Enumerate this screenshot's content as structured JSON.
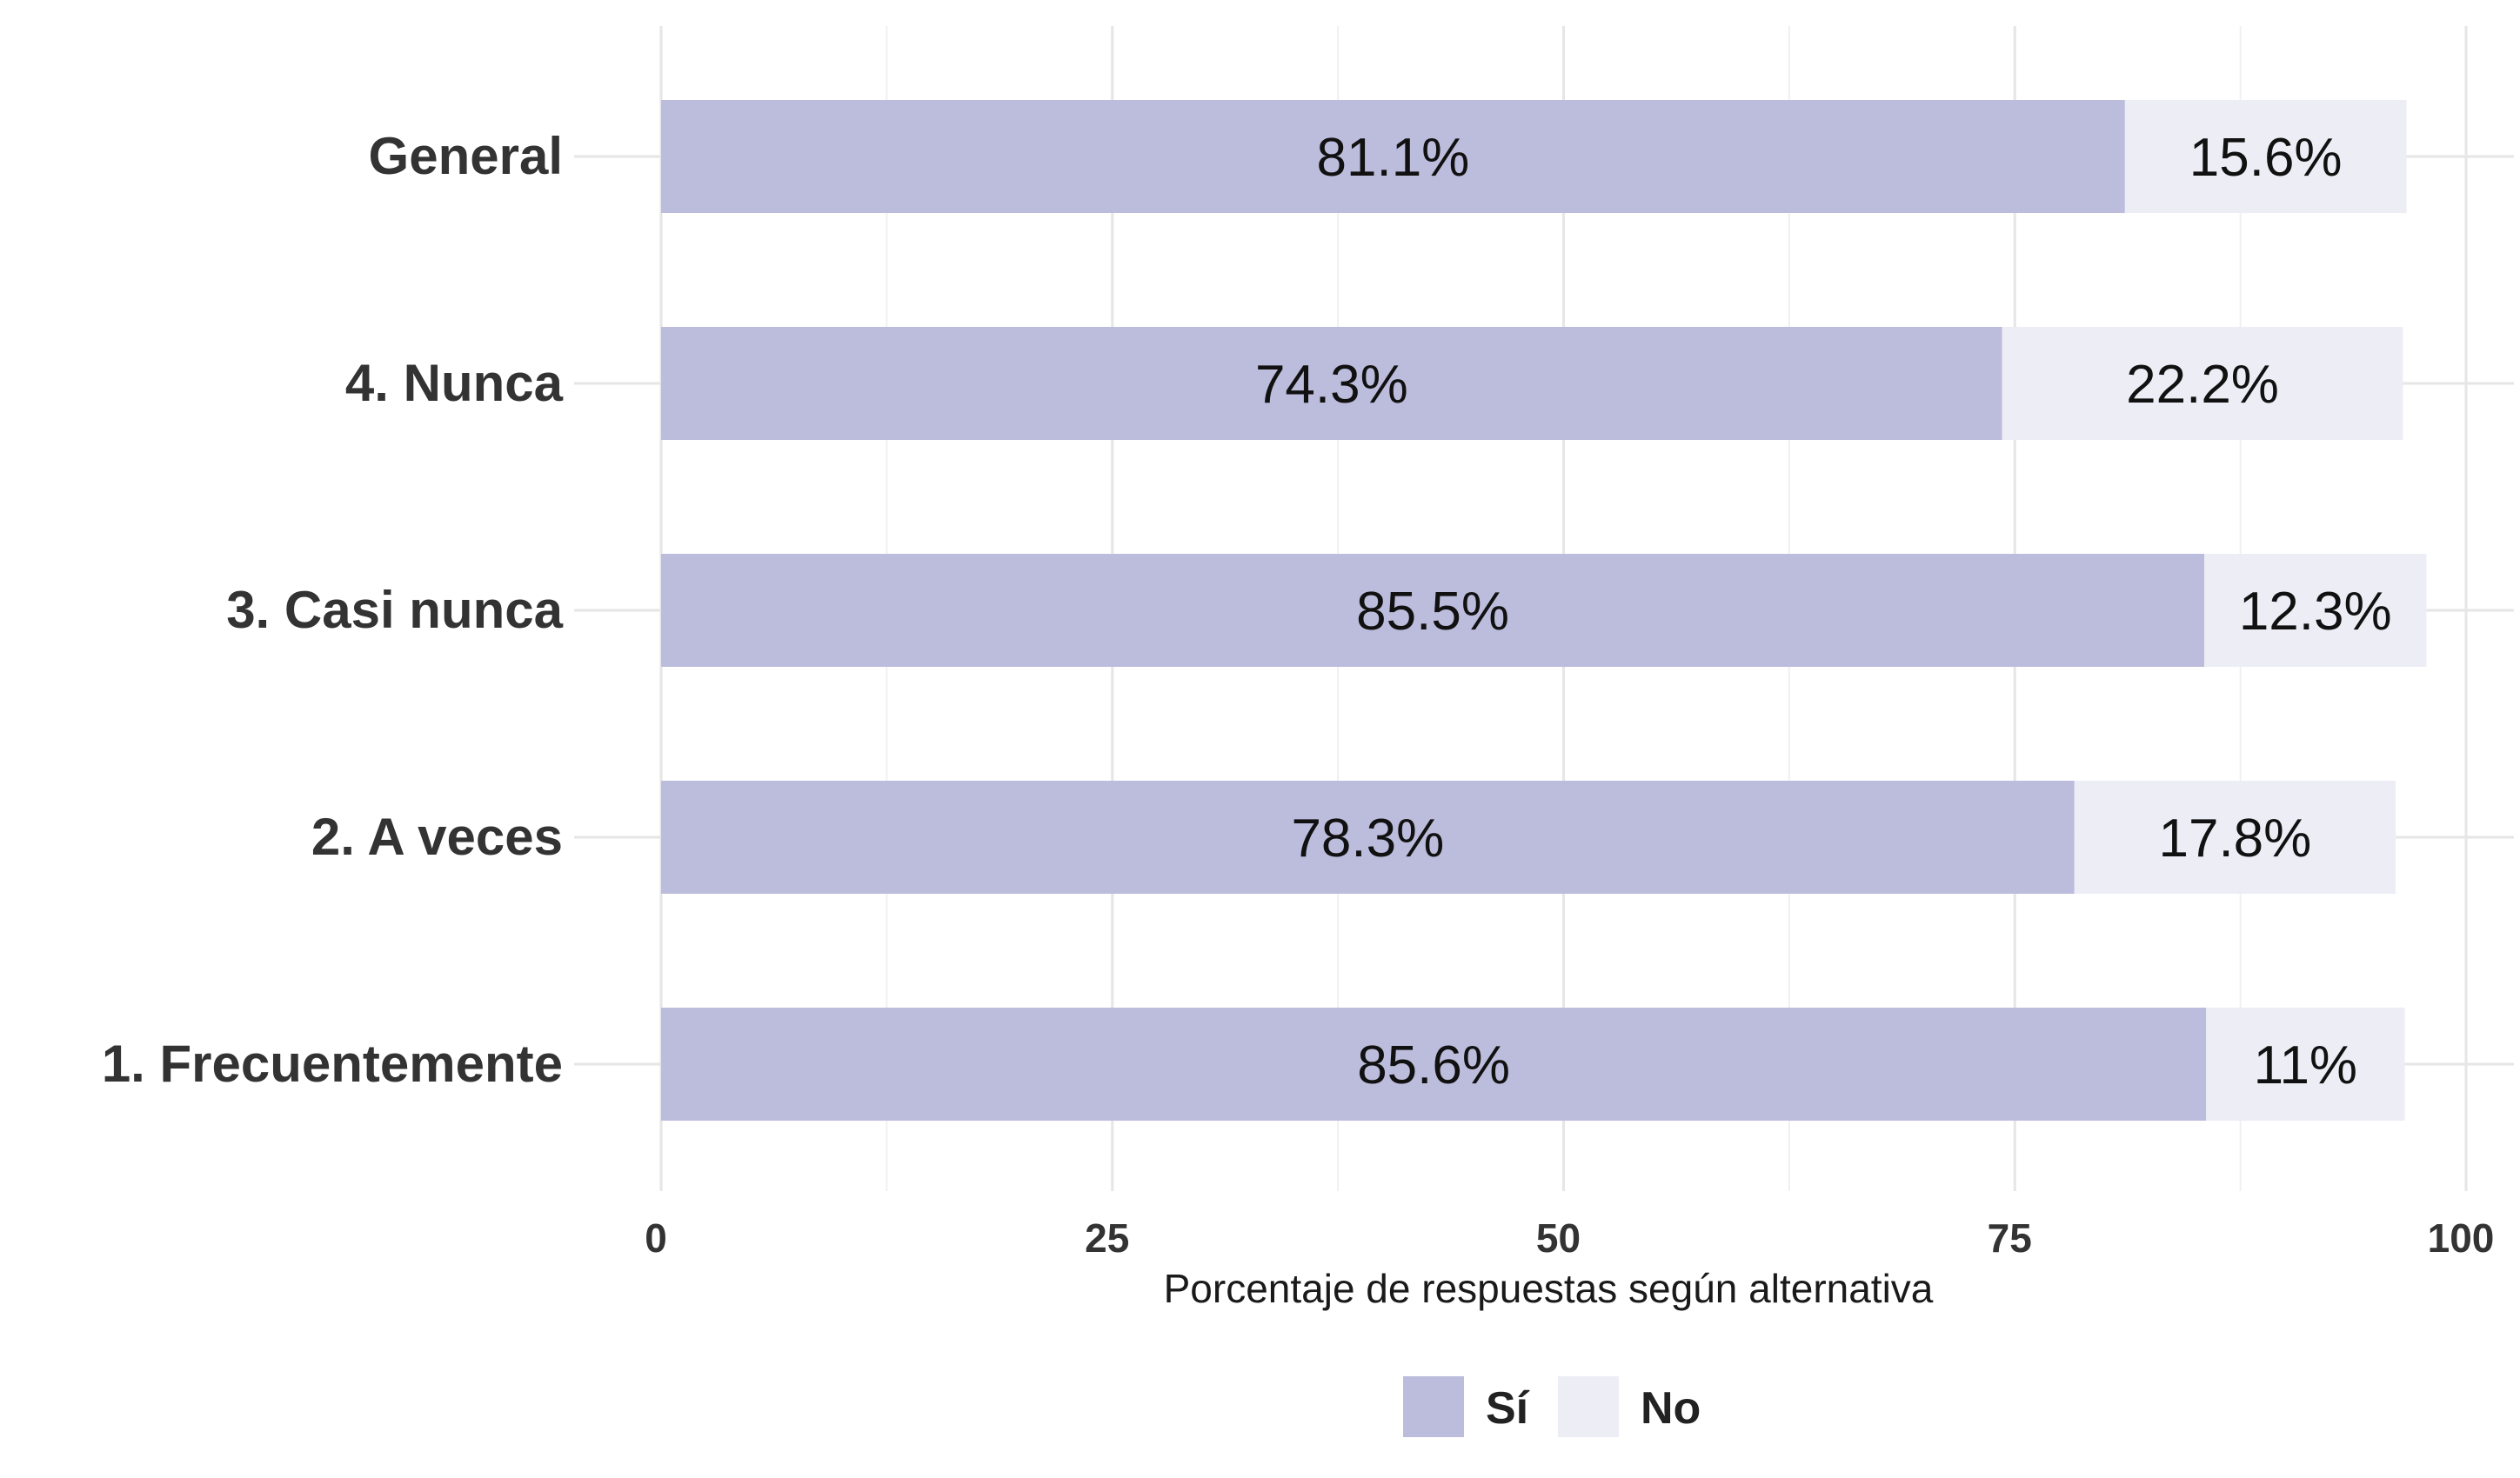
{
  "chart_data": {
    "type": "bar",
    "orientation": "horizontal",
    "stacked": true,
    "categories": [
      "General",
      "4. Nunca",
      "3. Casi nunca",
      "2. A veces",
      "1. Frecuentemente"
    ],
    "series": [
      {
        "name": "Sí",
        "color": "#bcbcdc",
        "values": [
          81.1,
          74.3,
          85.5,
          78.3,
          85.6
        ],
        "labels": [
          "81.1%",
          "74.3%",
          "85.5%",
          "78.3%",
          "85.6%"
        ]
      },
      {
        "name": "No",
        "color": "#ededf6",
        "values": [
          15.6,
          22.2,
          12.3,
          17.8,
          11.0
        ],
        "labels": [
          "15.6%",
          "22.2%",
          "12.3%",
          "17.8%",
          "11%"
        ]
      }
    ],
    "xlabel": "Porcentaje de respuestas según alternativa",
    "ylabel": "",
    "xlim": [
      0,
      100
    ],
    "xticks": [
      0,
      25,
      50,
      75,
      100
    ],
    "xtick_labels": [
      "0",
      "25",
      "50",
      "75",
      "100"
    ],
    "grid": true,
    "legend_position": "bottom"
  }
}
